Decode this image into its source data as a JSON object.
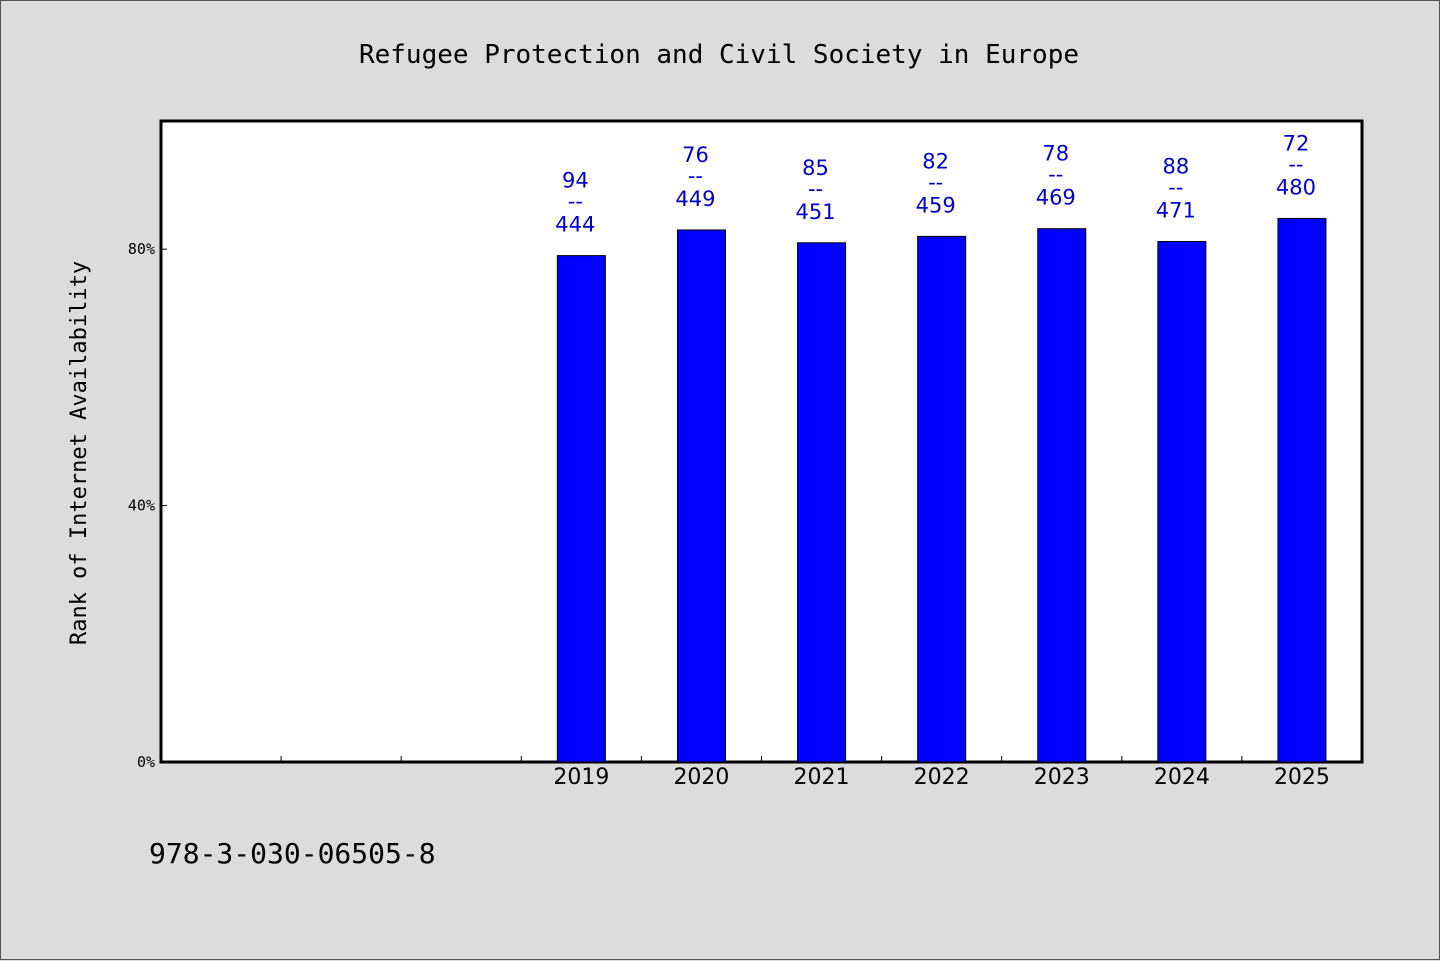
{
  "chart_data": {
    "type": "bar",
    "title": "Refugee Protection and Civil Society in Europe",
    "xlabel": "",
    "ylabel": "Rank of Internet Availability",
    "categories": [
      "2019",
      "2020",
      "2021",
      "2022",
      "2023",
      "2024",
      "2025"
    ],
    "values": [
      79,
      83,
      81,
      82,
      83.2,
      81.2,
      84.8
    ],
    "value_labels": [
      {
        "top": "94",
        "sep": "--",
        "bottom": "444"
      },
      {
        "top": "76",
        "sep": "--",
        "bottom": "449"
      },
      {
        "top": "85",
        "sep": "--",
        "bottom": "451"
      },
      {
        "top": "82",
        "sep": "--",
        "bottom": "459"
      },
      {
        "top": "78",
        "sep": "--",
        "bottom": "469"
      },
      {
        "top": "88",
        "sep": "--",
        "bottom": "471"
      },
      {
        "top": "72",
        "sep": "--",
        "bottom": "480"
      }
    ],
    "yticks": [
      0,
      40,
      80
    ],
    "ytick_labels": [
      "0%",
      "40%",
      "80%"
    ],
    "ylim": [
      0,
      100
    ],
    "x_slots": 10,
    "first_bar_slot": 3,
    "grid": false,
    "legend": "none",
    "bar_color": "#0000ff",
    "label_color": "#0000cc",
    "plot_background": "#ffffff",
    "page_background": "#dcdcdc"
  },
  "footer": {
    "isbn": "978-3-030-06505-8"
  }
}
